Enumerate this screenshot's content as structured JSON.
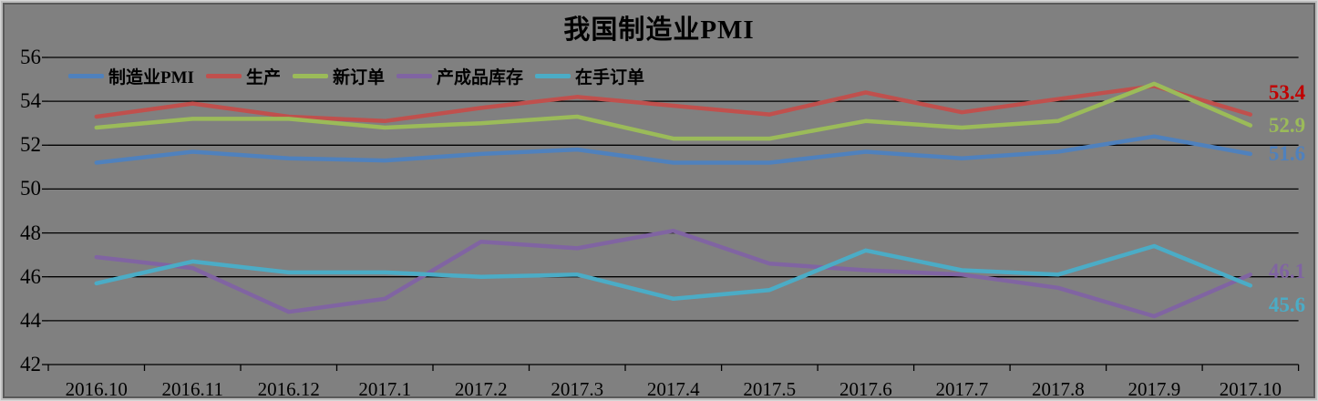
{
  "chart_data": {
    "type": "line",
    "title": "我国制造业PMI",
    "categories": [
      "2016.10",
      "2016.11",
      "2016.12",
      "2017.1",
      "2017.2",
      "2017.3",
      "2017.4",
      "2017.5",
      "2017.6",
      "2017.7",
      "2017.8",
      "2017.9",
      "2017.10"
    ],
    "y_ticks": [
      56,
      54,
      52,
      50,
      48,
      46,
      44,
      42
    ],
    "ylim": [
      42,
      56
    ],
    "grid": true,
    "legend_position": "top-left-inside",
    "series": [
      {
        "key": "pmi",
        "name": "制造业PMI",
        "color": "#4F81BD",
        "values": [
          51.2,
          51.7,
          51.4,
          51.3,
          51.6,
          51.8,
          51.2,
          51.2,
          51.7,
          51.4,
          51.7,
          52.4,
          51.6
        ]
      },
      {
        "key": "production",
        "name": "生产",
        "color": "#C0504D",
        "values": [
          53.3,
          53.9,
          53.3,
          53.1,
          53.7,
          54.2,
          53.8,
          53.4,
          54.4,
          53.5,
          54.1,
          54.7,
          53.4
        ]
      },
      {
        "key": "new-orders",
        "name": "新订单",
        "color": "#9BBB59",
        "values": [
          52.8,
          53.2,
          53.2,
          52.8,
          53.0,
          53.3,
          52.3,
          52.3,
          53.1,
          52.8,
          53.1,
          54.8,
          52.9
        ]
      },
      {
        "key": "finished-goods-inventory",
        "name": "产成品库存",
        "color": "#8064A2",
        "values": [
          46.9,
          46.4,
          44.4,
          45.0,
          47.6,
          47.3,
          48.1,
          46.6,
          46.3,
          46.1,
          45.5,
          44.2,
          46.1
        ]
      },
      {
        "key": "backlog-orders",
        "name": "在手订单",
        "color": "#4BACC6",
        "values": [
          45.7,
          46.7,
          46.2,
          46.2,
          46.0,
          46.1,
          45.0,
          45.4,
          47.2,
          46.3,
          46.1,
          47.4,
          45.6
        ]
      }
    ],
    "end_labels": [
      {
        "key": "production",
        "text": "53.4",
        "value": 53.4,
        "color": "#C00000",
        "dy": -24
      },
      {
        "key": "new-orders",
        "text": "52.9",
        "value": 52.9,
        "color": "#9BBB59",
        "dy": 0
      },
      {
        "key": "pmi",
        "text": "51.6",
        "value": 51.6,
        "color": "#4F81BD",
        "dy": 0
      },
      {
        "key": "finished-goods-inventory",
        "text": "46.1",
        "value": 46.1,
        "color": "#8064A2",
        "dy": -3
      },
      {
        "key": "backlog-orders",
        "text": "45.6",
        "value": 45.6,
        "color": "#4BACC6",
        "dy": 22
      }
    ]
  },
  "colors": {
    "background": "#808080",
    "frame_light": "#bdbdbd",
    "frame_dark": "#595959",
    "gridline": "#000000",
    "text": "#000000"
  }
}
